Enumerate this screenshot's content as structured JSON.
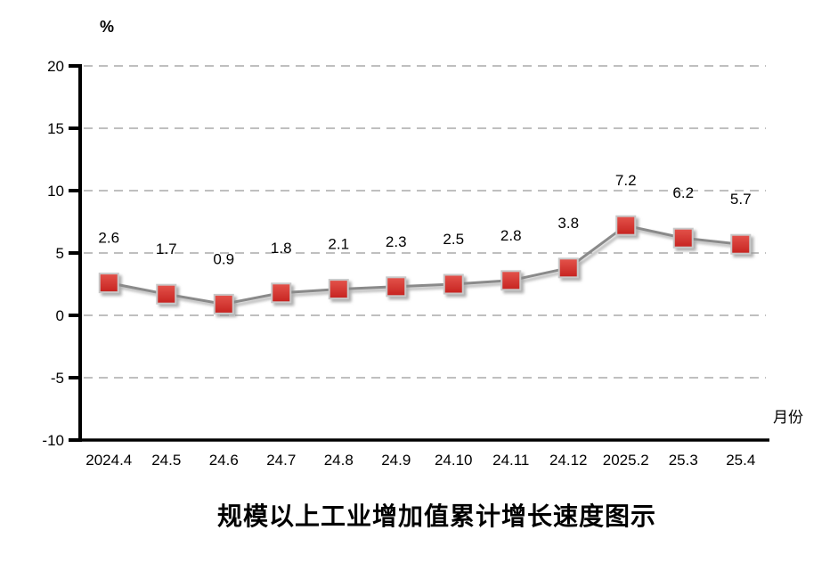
{
  "chart_data": {
    "type": "line",
    "title": "规模以上工业增加值累计增长速度图示",
    "y_unit_label": "%",
    "x_axis_label": "月份",
    "categories": [
      "2024.4",
      "24.5",
      "24.6",
      "24.7",
      "24.8",
      "24.9",
      "24.10",
      "24.11",
      "24.12",
      "2025.2",
      "25.3",
      "25.4"
    ],
    "values": [
      2.6,
      1.7,
      0.9,
      1.8,
      2.1,
      2.3,
      2.5,
      2.8,
      3.8,
      7.2,
      6.2,
      5.7
    ],
    "data_labels": [
      "2.6",
      "1.7",
      "0.9",
      "1.8",
      "2.1",
      "2.3",
      "2.5",
      "2.8",
      "3.8",
      "7.2",
      "6.2",
      "5.7"
    ],
    "ylim": [
      -10,
      20
    ],
    "y_ticks": [
      20,
      15,
      10,
      5,
      0,
      -5,
      -10
    ],
    "grid": true,
    "legend": "none",
    "colors": {
      "marker_fill_top": "#e4534b",
      "marker_fill_bottom": "#c62320",
      "marker_border": "#c8c8c8",
      "line": "#8a8a8a",
      "grid": "#bfbfbf",
      "axis": "#000000",
      "text": "#000000"
    }
  }
}
